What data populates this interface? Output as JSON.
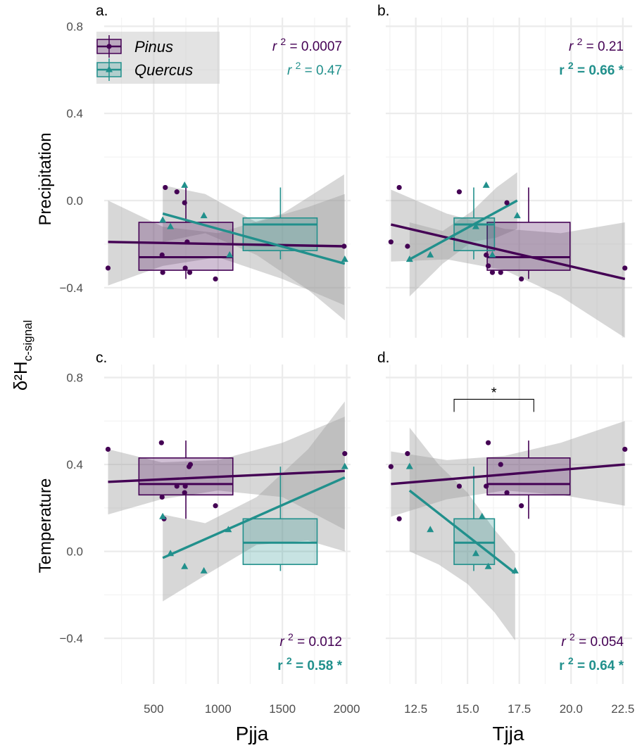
{
  "figure": {
    "ylabel_main": "δ²H",
    "ylabel_sub": "c-signal",
    "xlabels": [
      "Pjja",
      "Tjja"
    ]
  },
  "legend": {
    "entries": [
      {
        "label": "Pinus",
        "color": "#440154",
        "marker": "circle"
      },
      {
        "label": "Quercus",
        "color": "#21908C",
        "marker": "triangle"
      }
    ]
  },
  "colors": {
    "pinus": "#440154",
    "quercus": "#21908C",
    "band": "#9a9a9a",
    "grid": "#ebebeb"
  },
  "chart_data": [
    {
      "type": "scatter",
      "panel": "a.",
      "row_label": "Precipitation",
      "xlabel": "Pjja",
      "xlim": [
        115,
        2030
      ],
      "ylim": [
        -0.63,
        0.84
      ],
      "xticks": [
        500,
        1000,
        1500,
        2000
      ],
      "xtick_labels": [
        "500",
        "1000",
        "1500",
        "2000"
      ],
      "yticks": [
        -0.4,
        0.0,
        0.4,
        0.8
      ],
      "ytick_labels": [
        "−0.4",
        "0.0",
        "0.4",
        "0.8"
      ],
      "show_xtick_labels": false,
      "show_ytick_labels": true,
      "grid": true,
      "series": [
        {
          "name": "Pinus",
          "color": "#440154",
          "marker": "circle",
          "points": [
            [
              145,
              -0.31
            ],
            [
              565,
              -0.25
            ],
            [
              570,
              -0.33
            ],
            [
              590,
              0.06
            ],
            [
              680,
              0.04
            ],
            [
              740,
              -0.01
            ],
            [
              745,
              -0.31
            ],
            [
              760,
              -0.19
            ],
            [
              780,
              -0.33
            ],
            [
              980,
              -0.36
            ],
            [
              1980,
              -0.21
            ]
          ],
          "fit": {
            "x": [
              145,
              1980
            ],
            "y": [
              -0.19,
              -0.21
            ]
          },
          "band": {
            "x": [
              145,
              570,
              1000,
              1500,
              1980
            ],
            "lo": [
              -0.39,
              -0.3,
              -0.26,
              -0.36,
              -0.48
            ],
            "hi": [
              0.0,
              -0.12,
              -0.15,
              -0.06,
              0.12
            ]
          },
          "box": {
            "x_min": 385,
            "x_max": 1115,
            "q1": -0.32,
            "median": -0.26,
            "q3": -0.1,
            "whisker_low": -0.36,
            "whisker_high": 0.06,
            "center": 750
          }
        },
        {
          "name": "Quercus",
          "color": "#21908C",
          "marker": "triangle",
          "points": [
            [
              570,
              -0.09
            ],
            [
              630,
              -0.12
            ],
            [
              740,
              0.07
            ],
            [
              890,
              -0.07
            ],
            [
              1090,
              -0.25
            ],
            [
              1985,
              -0.27
            ]
          ],
          "fit": {
            "x": [
              570,
              1985
            ],
            "y": [
              -0.06,
              -0.29
            ]
          },
          "band": {
            "x": [
              570,
              900,
              1300,
              1700,
              1985
            ],
            "lo": [
              -0.19,
              -0.15,
              -0.25,
              -0.41,
              -0.55
            ],
            "hi": [
              0.07,
              0.03,
              -0.1,
              -0.03,
              0.03
            ]
          },
          "box": {
            "x_min": 1195,
            "x_max": 1770,
            "q1": -0.23,
            "median": -0.11,
            "q3": -0.08,
            "whisker_low": -0.27,
            "whisker_high": 0.06,
            "center": 1485
          }
        }
      ],
      "annotations": [
        {
          "prefix": "r",
          "sup": "2",
          "text": " = 0.0007",
          "color": "#440154",
          "bold": false,
          "italic_r": true
        },
        {
          "prefix": "r",
          "sup": "2",
          "text": " = 0.47",
          "color": "#21908C",
          "bold": false,
          "italic_r": true
        }
      ],
      "annotation_position": "top-right"
    },
    {
      "type": "scatter",
      "panel": "b.",
      "xlabel": "Tjja",
      "xlim": [
        11.05,
        22.95
      ],
      "ylim": [
        -0.63,
        0.84
      ],
      "xticks": [
        12.5,
        15.0,
        17.5,
        20.0,
        22.5
      ],
      "xtick_labels": [
        "12.5",
        "15.0",
        "17.5",
        "20.0",
        "22.5"
      ],
      "yticks": [
        -0.4,
        0.0,
        0.4,
        0.8
      ],
      "ytick_labels": [
        "−0.4",
        "0.0",
        "0.4",
        "0.8"
      ],
      "show_xtick_labels": false,
      "show_ytick_labels": false,
      "grid": true,
      "series": [
        {
          "name": "Pinus",
          "color": "#440154",
          "marker": "circle",
          "points": [
            [
              11.3,
              -0.19
            ],
            [
              11.7,
              0.06
            ],
            [
              12.1,
              -0.21
            ],
            [
              14.6,
              0.04
            ],
            [
              15.9,
              -0.25
            ],
            [
              16.0,
              -0.3
            ],
            [
              16.2,
              -0.33
            ],
            [
              16.6,
              -0.33
            ],
            [
              16.9,
              -0.01
            ],
            [
              17.6,
              -0.36
            ],
            [
              22.6,
              -0.31
            ]
          ],
          "fit": {
            "x": [
              11.3,
              22.6
            ],
            "y": [
              -0.11,
              -0.36
            ]
          },
          "band": {
            "x": [
              11.3,
              14.0,
              16.8,
              19.5,
              22.6
            ],
            "lo": [
              -0.28,
              -0.27,
              -0.32,
              -0.44,
              -0.63
            ],
            "hi": [
              0.05,
              -0.06,
              -0.13,
              -0.15,
              -0.1
            ]
          },
          "box": {
            "x_min": 15.95,
            "x_max": 19.95,
            "q1": -0.32,
            "median": -0.26,
            "q3": -0.1,
            "whisker_low": -0.36,
            "whisker_high": 0.06,
            "center": 17.95
          }
        },
        {
          "name": "Quercus",
          "color": "#21908C",
          "marker": "triangle",
          "points": [
            [
              12.2,
              -0.27
            ],
            [
              13.2,
              -0.25
            ],
            [
              15.4,
              -0.12
            ],
            [
              15.9,
              0.07
            ],
            [
              16.2,
              -0.25
            ],
            [
              17.4,
              -0.07
            ]
          ],
          "fit": {
            "x": [
              12.2,
              17.4
            ],
            "y": [
              -0.27,
              0.0
            ]
          },
          "band": {
            "x": [
              12.2,
              13.8,
              15.2,
              16.4,
              17.4
            ],
            "lo": [
              -0.44,
              -0.29,
              -0.19,
              -0.17,
              -0.13
            ],
            "hi": [
              -0.1,
              -0.14,
              -0.05,
              0.06,
              0.13
            ]
          },
          "box": {
            "x_min": 14.35,
            "x_max": 16.3,
            "q1": -0.23,
            "median": -0.11,
            "q3": -0.08,
            "whisker_low": -0.27,
            "whisker_high": 0.06,
            "center": 15.3
          }
        }
      ],
      "annotations": [
        {
          "prefix": "r",
          "sup": "2",
          "text": " = 0.21",
          "color": "#440154",
          "bold": false,
          "italic_r": true
        },
        {
          "prefix": "r",
          "sup": "2",
          "text": " = 0.66 *",
          "color": "#21908C",
          "bold": true,
          "italic_r": false
        }
      ],
      "annotation_position": "top-right"
    },
    {
      "type": "scatter",
      "panel": "c.",
      "row_label": "Temperature",
      "xlabel": "Pjja",
      "xlim": [
        115,
        2030
      ],
      "ylim": [
        -0.61,
        0.86
      ],
      "xticks": [
        500,
        1000,
        1500,
        2000
      ],
      "xtick_labels": [
        "500",
        "1000",
        "1500",
        "2000"
      ],
      "yticks": [
        -0.4,
        0.0,
        0.4,
        0.8
      ],
      "ytick_labels": [
        "−0.4",
        "0.0",
        "0.4",
        "0.8"
      ],
      "show_xtick_labels": true,
      "show_ytick_labels": true,
      "grid": true,
      "series": [
        {
          "name": "Pinus",
          "color": "#440154",
          "marker": "circle",
          "points": [
            [
              145,
              0.47
            ],
            [
              560,
              0.5
            ],
            [
              565,
              0.25
            ],
            [
              580,
              0.15
            ],
            [
              680,
              0.3
            ],
            [
              740,
              0.27
            ],
            [
              745,
              0.3
            ],
            [
              775,
              0.39
            ],
            [
              785,
              0.4
            ],
            [
              980,
              0.21
            ],
            [
              1985,
              0.45
            ]
          ],
          "fit": {
            "x": [
              145,
              1985
            ],
            "y": [
              0.32,
              0.37
            ]
          },
          "band": {
            "x": [
              145,
              560,
              1000,
              1500,
              1985
            ],
            "lo": [
              0.17,
              0.24,
              0.28,
              0.25,
              0.1
            ],
            "hi": [
              0.47,
              0.41,
              0.42,
              0.5,
              0.62
            ]
          },
          "box": {
            "x_min": 385,
            "x_max": 1115,
            "q1": 0.26,
            "median": 0.31,
            "q3": 0.43,
            "whisker_low": 0.15,
            "whisker_high": 0.51,
            "center": 750
          }
        },
        {
          "name": "Quercus",
          "color": "#21908C",
          "marker": "triangle",
          "points": [
            [
              570,
              0.16
            ],
            [
              630,
              -0.01
            ],
            [
              740,
              -0.07
            ],
            [
              890,
              -0.09
            ],
            [
              1080,
              0.1
            ],
            [
              1985,
              0.39
            ]
          ],
          "fit": {
            "x": [
              570,
              1985
            ],
            "y": [
              -0.03,
              0.34
            ]
          },
          "band": {
            "x": [
              570,
              900,
              1300,
              1700,
              1985
            ],
            "lo": [
              -0.23,
              -0.11,
              0.03,
              0.05,
              0.0
            ],
            "hi": [
              0.17,
              0.13,
              0.25,
              0.47,
              0.69
            ]
          },
          "box": {
            "x_min": 1195,
            "x_max": 1770,
            "q1": -0.06,
            "median": 0.04,
            "q3": 0.15,
            "whisker_low": -0.09,
            "whisker_high": 0.39,
            "center": 1485
          }
        }
      ],
      "annotations": [
        {
          "prefix": "r",
          "sup": "2",
          "text": " = 0.012",
          "color": "#440154",
          "bold": false,
          "italic_r": true
        },
        {
          "prefix": "r",
          "sup": "2",
          "text": " = 0.58 *",
          "color": "#21908C",
          "bold": true,
          "italic_r": false
        }
      ],
      "annotation_position": "bottom-right"
    },
    {
      "type": "scatter",
      "panel": "d.",
      "xlabel": "Tjja",
      "xlim": [
        11.05,
        22.95
      ],
      "ylim": [
        -0.61,
        0.86
      ],
      "xticks": [
        12.5,
        15.0,
        17.5,
        20.0,
        22.5
      ],
      "xtick_labels": [
        "12.5",
        "15.0",
        "17.5",
        "20.0",
        "22.5"
      ],
      "yticks": [
        -0.4,
        0.0,
        0.4,
        0.8
      ],
      "ytick_labels": [
        "−0.4",
        "0.0",
        "0.4",
        "0.8"
      ],
      "show_xtick_labels": true,
      "show_ytick_labels": false,
      "grid": true,
      "series": [
        {
          "name": "Pinus",
          "color": "#440154",
          "marker": "circle",
          "points": [
            [
              11.3,
              0.39
            ],
            [
              11.7,
              0.15
            ],
            [
              12.1,
              0.45
            ],
            [
              14.6,
              0.3
            ],
            [
              15.9,
              0.3
            ],
            [
              16.0,
              0.5
            ],
            [
              16.6,
              0.4
            ],
            [
              16.9,
              0.27
            ],
            [
              17.6,
              0.21
            ],
            [
              22.6,
              0.47
            ]
          ],
          "fit": {
            "x": [
              11.3,
              22.6
            ],
            "y": [
              0.31,
              0.4
            ]
          },
          "band": {
            "x": [
              11.3,
              14.0,
              16.8,
              19.5,
              22.6
            ],
            "lo": [
              0.16,
              0.24,
              0.28,
              0.26,
              0.21
            ],
            "hi": [
              0.46,
              0.42,
              0.44,
              0.5,
              0.6
            ]
          },
          "box": {
            "x_min": 15.95,
            "x_max": 19.95,
            "q1": 0.26,
            "median": 0.31,
            "q3": 0.43,
            "whisker_low": 0.15,
            "whisker_high": 0.51,
            "center": 17.95
          }
        },
        {
          "name": "Quercus",
          "color": "#21908C",
          "marker": "triangle",
          "points": [
            [
              12.2,
              0.39
            ],
            [
              13.2,
              0.1
            ],
            [
              15.4,
              -0.01
            ],
            [
              15.7,
              0.16
            ],
            [
              16.0,
              -0.07
            ],
            [
              17.3,
              -0.09
            ]
          ],
          "fit": {
            "x": [
              12.2,
              17.3
            ],
            "y": [
              0.28,
              -0.1
            ]
          },
          "band": {
            "x": [
              12.2,
              13.6,
              15.0,
              16.3,
              17.3
            ],
            "lo": [
              0.0,
              -0.06,
              -0.15,
              -0.28,
              -0.41
            ],
            "hi": [
              0.57,
              0.4,
              0.27,
              0.1,
              -0.01
            ]
          },
          "box": {
            "x_min": 14.35,
            "x_max": 16.3,
            "q1": -0.06,
            "median": 0.04,
            "q3": 0.15,
            "whisker_low": -0.09,
            "whisker_high": 0.39,
            "center": 15.3
          }
        }
      ],
      "significance_bracket": {
        "x1": 14.35,
        "x2": 18.2,
        "y": 0.7,
        "label": "*"
      },
      "annotations": [
        {
          "prefix": "r",
          "sup": "2",
          "text": " = 0.054",
          "color": "#440154",
          "bold": false,
          "italic_r": true
        },
        {
          "prefix": "r",
          "sup": "2",
          "text": " = 0.64 *",
          "color": "#21908C",
          "bold": true,
          "italic_r": false
        }
      ],
      "annotation_position": "bottom-right"
    }
  ]
}
